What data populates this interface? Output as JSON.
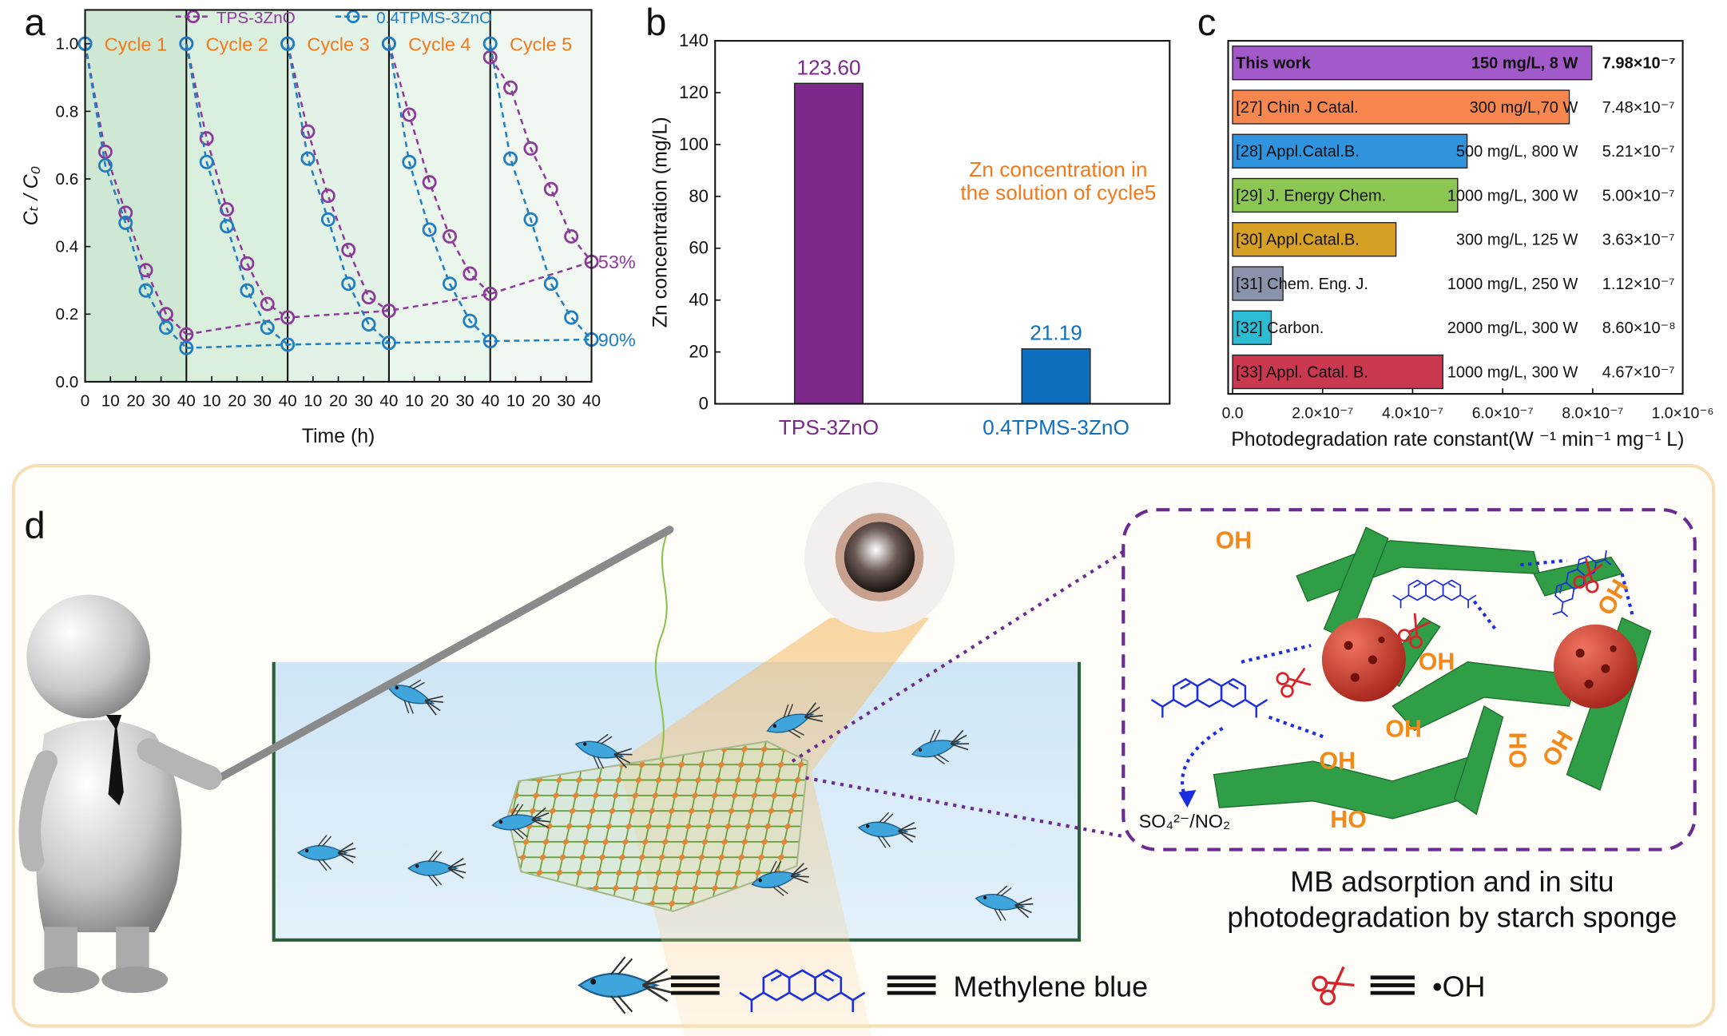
{
  "chart_data": [
    {
      "type": "line",
      "panel_label": "a",
      "ylabel": "Cₜ / C₀",
      "xlabel": "Time (h)",
      "ylim": [
        0,
        1.1
      ],
      "yticks": [
        {
          "value": 0,
          "label": "0.0"
        },
        0.2,
        0.4,
        0.6,
        0.8,
        {
          "value": 1,
          "label": "1.0"
        }
      ],
      "xlim": [
        0,
        40
      ],
      "x": [
        0,
        8,
        16,
        24,
        32,
        40
      ],
      "cycles": [
        {
          "title": "Cycle 1",
          "color": "#cfe8d4",
          "xticks": [
            0,
            10,
            20,
            30,
            40
          ]
        },
        {
          "title": "Cycle 2",
          "color": "#dbefdf",
          "xticks": [
            10,
            20,
            30,
            40
          ]
        },
        {
          "title": "Cycle 3",
          "color": "#e3f2e6",
          "xticks": [
            10,
            20,
            30,
            40
          ]
        },
        {
          "title": "Cycle 4",
          "color": "#eaf5ec",
          "xticks": [
            10,
            20,
            30,
            40
          ]
        },
        {
          "title": "Cycle 5",
          "color": "#f1f8f2",
          "xticks": [
            10,
            20,
            30,
            40
          ]
        }
      ],
      "series": [
        {
          "name": "TPS-3ZnO",
          "color": "#8b3a9a",
          "end_label": "53%",
          "values": [
            [
              1.0,
              0.68,
              0.5,
              0.33,
              0.2,
              0.14
            ],
            [
              1.0,
              0.72,
              0.51,
              0.35,
              0.23,
              0.19
            ],
            [
              1.0,
              0.74,
              0.55,
              0.39,
              0.25,
              0.21
            ],
            [
              1.0,
              0.79,
              0.59,
              0.43,
              0.32,
              0.26
            ],
            [
              0.96,
              0.87,
              0.69,
              0.57,
              0.43,
              0.355
            ]
          ]
        },
        {
          "name": "0.4TPMS-3ZnO",
          "color": "#1f7dc1",
          "end_label": "90%",
          "values": [
            [
              1.0,
              0.64,
              0.47,
              0.27,
              0.16,
              0.1
            ],
            [
              1.0,
              0.65,
              0.46,
              0.27,
              0.16,
              0.11
            ],
            [
              1.0,
              0.66,
              0.48,
              0.29,
              0.17,
              0.115
            ],
            [
              1.0,
              0.65,
              0.45,
              0.29,
              0.18,
              0.12
            ],
            [
              1.0,
              0.66,
              0.48,
              0.29,
              0.19,
              0.125
            ]
          ]
        }
      ]
    },
    {
      "type": "bar",
      "panel_label": "b",
      "ylabel": "Zn concentration (mg/L)",
      "categories": [
        "TPS-3ZnO",
        "0.4TPMS-3ZnO"
      ],
      "values": [
        123.6,
        21.19
      ],
      "value_labels": [
        "123.60",
        "21.19"
      ],
      "colors": [
        "#7b2a8c",
        "#0f6fbf"
      ],
      "ylim": [
        0,
        140
      ],
      "yticks": [
        0,
        20,
        40,
        60,
        80,
        100,
        120,
        140
      ],
      "annotation": [
        "Zn concentration in",
        "the solution of cycle5"
      ],
      "annotation_color": "#f07a1c"
    },
    {
      "type": "barh",
      "panel_label": "c",
      "xlabel": "Photodegradation rate constant(W ⁻¹ min⁻¹ mg⁻¹ L)",
      "categories": [
        "This work",
        "[27] Chin J Catal.",
        "[28] Appl.Catal.B.",
        "[29] J. Energy Chem.",
        "[30] Appl.Catal.B.",
        "[31] Chem. Eng. J.",
        "[32] Carbon.",
        "[33] Appl. Catal. B."
      ],
      "conditions": [
        "150 mg/L, 8 W",
        "300 mg/L,70 W",
        "500 mg/L, 800 W",
        "1000 mg/L, 300 W",
        "300 mg/L, 125 W",
        "1000 mg/L, 250 W",
        "2000 mg/L, 300 W",
        "1000 mg/L, 300 W"
      ],
      "values": [
        7.98e-07,
        7.48e-07,
        5.21e-07,
        5e-07,
        3.63e-07,
        1.12e-07,
        8.6e-08,
        4.67e-07
      ],
      "value_labels": [
        "7.98×10⁻⁷",
        "7.48×10⁻⁷",
        "5.21×10⁻⁷",
        "5.00×10⁻⁷",
        "3.63×10⁻⁷",
        "1.12×10⁻⁷",
        "8.60×10⁻⁸",
        "4.67×10⁻⁷"
      ],
      "colors": [
        "#a259c9",
        "#f7864f",
        "#2f93dd",
        "#8cc653",
        "#d6a124",
        "#8b93ab",
        "#2cbcd4",
        "#c9384f"
      ],
      "highlight": 0,
      "xlim": [
        0,
        1e-06
      ],
      "xticks": [
        {
          "value": 0,
          "label": "0.0"
        },
        {
          "value": 2e-07,
          "label": "2.0×10⁻⁷"
        },
        {
          "value": 4e-07,
          "label": "4.0×10⁻⁷"
        },
        {
          "value": 6e-07,
          "label": "6.0×10⁻⁷"
        },
        {
          "value": 8e-07,
          "label": "8.0×10⁻⁷"
        },
        {
          "value": 1e-06,
          "label": "1.0×10⁻⁶"
        }
      ]
    }
  ],
  "diagram": {
    "panel_label": "d",
    "caption": [
      "MB adsorption and in situ",
      "photodegradation by starch sponge"
    ],
    "product": "SO₄²⁻/NO₂",
    "hydroxyl_labels": [
      "OH",
      "OH",
      "OH",
      "OH",
      "OH",
      "HO",
      "OH",
      "HO"
    ],
    "legend": [
      "Methylene blue",
      "•OH"
    ]
  }
}
